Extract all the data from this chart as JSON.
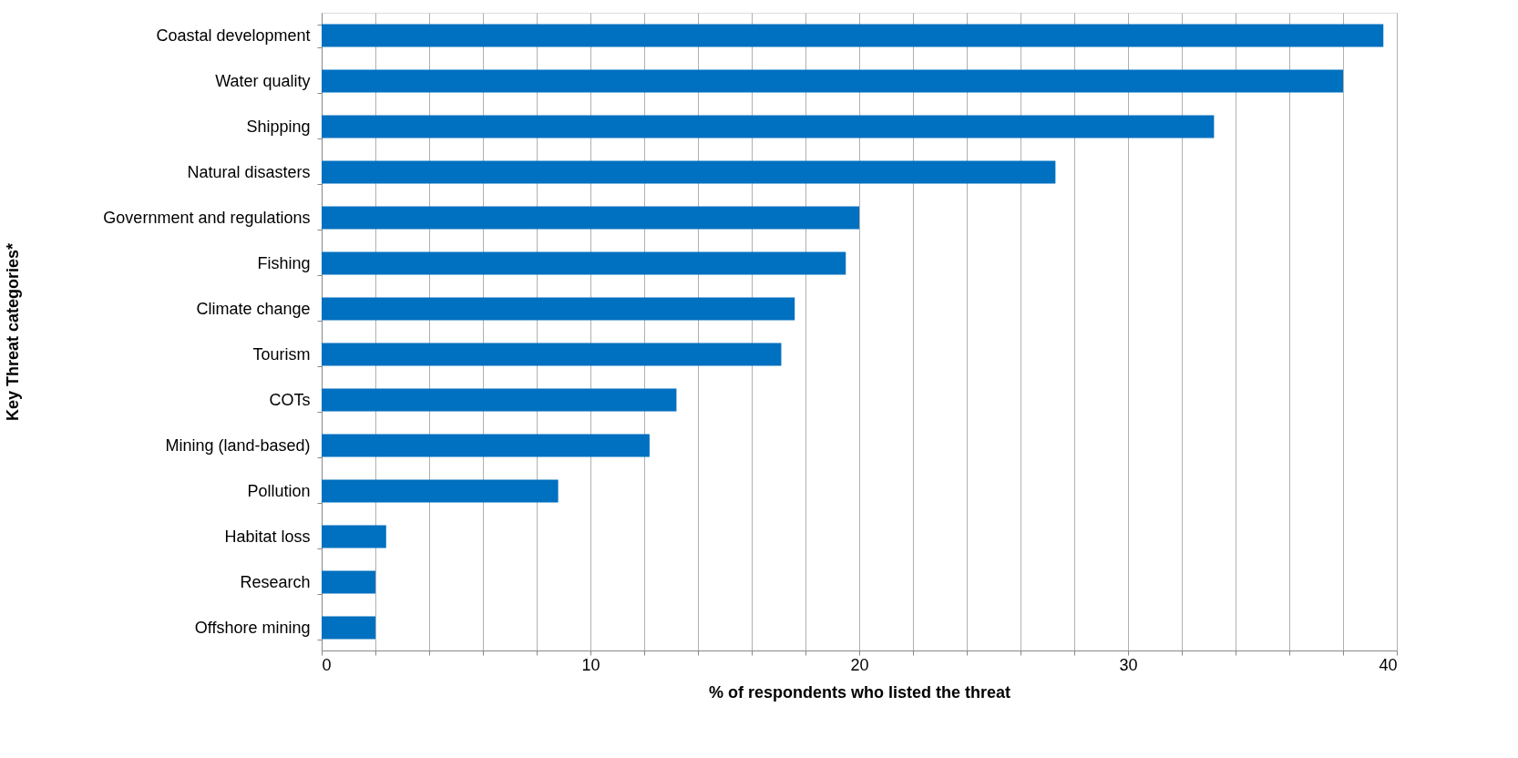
{
  "chart_data": {
    "type": "bar",
    "orientation": "horizontal",
    "xlabel": "% of respondents who listed the threat",
    "ylabel": "Key Threat categories*",
    "categories": [
      "Coastal development",
      "Water quality",
      "Shipping",
      "Natural disasters",
      "Government and regulations",
      "Fishing",
      "Climate change",
      "Tourism",
      "COTs",
      "Mining (land-based)",
      "Pollution",
      "Habitat loss",
      "Research",
      "Offshore mining"
    ],
    "values": [
      39.5,
      38.0,
      33.2,
      27.3,
      20.0,
      19.5,
      17.6,
      17.1,
      13.2,
      12.2,
      8.8,
      2.4,
      2.0,
      2.0
    ],
    "color": "#0070c0",
    "xlim": [
      0,
      40
    ],
    "xticks": [
      0,
      {
        "value": 2,
        "label": null
      },
      {
        "value": 4,
        "label": null
      },
      {
        "value": 6,
        "label": null
      },
      {
        "value": 8,
        "label": null
      },
      10,
      {
        "value": 12,
        "label": null
      },
      {
        "value": 14,
        "label": null
      },
      {
        "value": 16,
        "label": null
      },
      {
        "value": 18,
        "label": null
      },
      20,
      {
        "value": 22,
        "label": null
      },
      {
        "value": 24,
        "label": null
      },
      {
        "value": 26,
        "label": null
      },
      {
        "value": 28,
        "label": null
      },
      30,
      {
        "value": 32,
        "label": null
      },
      {
        "value": 34,
        "label": null
      },
      {
        "value": 36,
        "label": null
      },
      {
        "value": 38,
        "label": null
      },
      40
    ],
    "grid": "x"
  }
}
